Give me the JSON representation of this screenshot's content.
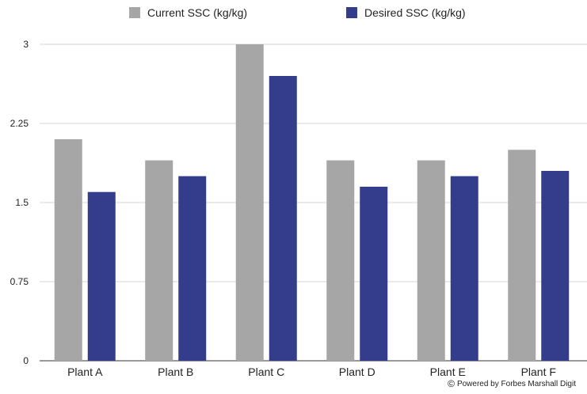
{
  "chart_data": {
    "type": "bar",
    "categories": [
      "Plant A",
      "Plant B",
      "Plant C",
      "Plant D",
      "Plant E",
      "Plant F"
    ],
    "series": [
      {
        "name": "Current SSC (kg/kg)",
        "color": "#a6a6a6",
        "values": [
          2.1,
          1.9,
          3.0,
          1.9,
          1.9,
          2.0
        ]
      },
      {
        "name": "Desired SSC (kg/kg)",
        "color": "#343d8c",
        "values": [
          1.6,
          1.75,
          2.7,
          1.65,
          1.75,
          1.8
        ]
      }
    ],
    "yticks": [
      "0",
      "0.75",
      "1.5",
      "2.25",
      "3"
    ],
    "ylim": [
      0,
      3
    ],
    "grid": true,
    "legend": "top"
  },
  "footer": {
    "text": "Powered by Forbes Marshall Digit",
    "icon": "copyright-icon"
  }
}
